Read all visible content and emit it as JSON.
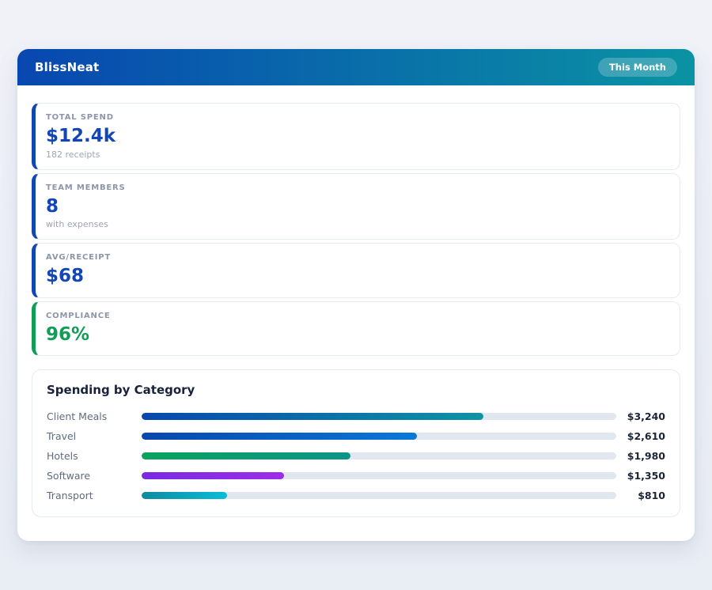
{
  "header": {
    "app_title": "BlissNeat",
    "period_badge": "This Month",
    "gradient_from": "#0847b0",
    "gradient_to": "#0a93a3"
  },
  "stats": [
    {
      "label": "TOTAL SPEND",
      "value": "$12.4k",
      "subtitle": "182 receipts",
      "accent": "#1346ae",
      "value_color": "#1145b8"
    },
    {
      "label": "TEAM MEMBERS",
      "value": "8",
      "subtitle": "with expenses",
      "accent": "#1346ae",
      "value_color": "#1145b8"
    },
    {
      "label": "AVG/RECEIPT",
      "value": "$68",
      "subtitle": "",
      "accent": "#1346ae",
      "value_color": "#1145b8"
    },
    {
      "label": "COMPLIANCE",
      "value": "96%",
      "subtitle": "",
      "accent": "#0f9d58",
      "value_color": "#0f9d58"
    }
  ],
  "spending": {
    "title": "Spending by Category",
    "track_color": "#e1e7ee",
    "rows": [
      {
        "label": "Client Meals",
        "value": "$3,240",
        "pct": 72,
        "gradient_from": "#0847ae",
        "gradient_to": "#0d94a4"
      },
      {
        "label": "Travel",
        "value": "$2,610",
        "pct": 58,
        "gradient_from": "#0847ae",
        "gradient_to": "#0a78d8"
      },
      {
        "label": "Hotels",
        "value": "$1,980",
        "pct": 44,
        "gradient_from": "#0aa35c",
        "gradient_to": "#0e9488"
      },
      {
        "label": "Software",
        "value": "$1,350",
        "pct": 30,
        "gradient_from": "#7a2be2",
        "gradient_to": "#9d2ce8"
      },
      {
        "label": "Transport",
        "value": "$810",
        "pct": 18,
        "gradient_from": "#0e8aa0",
        "gradient_to": "#0abcd8"
      }
    ]
  },
  "chart_data": {
    "type": "bar",
    "orientation": "horizontal",
    "title": "Spending by Category",
    "categories": [
      "Client Meals",
      "Travel",
      "Hotels",
      "Software",
      "Transport"
    ],
    "values": [
      3240,
      2610,
      1980,
      1350,
      810
    ],
    "value_labels": [
      "$3,240",
      "$2,610",
      "$1,980",
      "$1,350",
      "$810"
    ],
    "xlim": [
      0,
      4500
    ],
    "grid": false,
    "legend": false
  }
}
